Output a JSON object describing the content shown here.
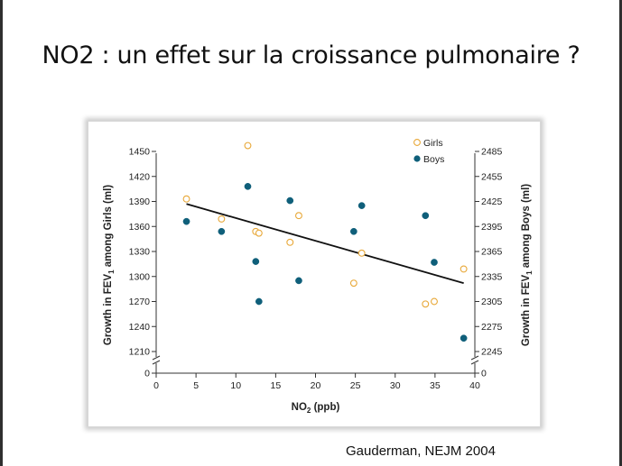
{
  "slide": {
    "title": "NO2 : un effet sur la croissance pulmonaire ?",
    "citation": "Gauderman, NEJM 2004"
  },
  "colors": {
    "girls": "#e8a838",
    "boys": "#0f5f7a",
    "regression": "#111111",
    "axis": "#333333"
  },
  "chart_data": {
    "type": "scatter",
    "title": "",
    "xlabel": "NO2 (ppb)",
    "xlabel_main": "NO",
    "xlabel_sub": "2",
    "xlabel_tail": " (ppb)",
    "ylabel_left": "Growth in FEV1 among Girls (ml)",
    "ylabel_left_main": "Growth in FEV",
    "ylabel_left_sub": "1",
    "ylabel_left_tail": " among Girls (ml)",
    "ylabel_right": "Growth in FEV1 among Boys (ml)",
    "ylabel_right_main": "Growth in FEV",
    "ylabel_right_sub": "1",
    "ylabel_right_tail": " among Boys (ml)",
    "xlim": [
      0,
      40
    ],
    "ylim_left": [
      1210,
      1450
    ],
    "ylim_right": [
      2245,
      2485
    ],
    "x_ticks": [
      "0",
      "5",
      "10",
      "15",
      "20",
      "25",
      "30",
      "35",
      "40"
    ],
    "y_left_ticks": [
      "1450",
      "1420",
      "1390",
      "1360",
      "1330",
      "1300",
      "1270",
      "1240",
      "1210"
    ],
    "y_right_ticks": [
      "2485",
      "2455",
      "2425",
      "2395",
      "2365",
      "2335",
      "2305",
      "2275",
      "2245"
    ],
    "axis_break_label": "0",
    "grid": false,
    "legend_position": "top-right",
    "series": [
      {
        "name": "Girls",
        "axis": "left",
        "marker": "open-circle",
        "points": [
          {
            "x": 3.8,
            "y": 1393
          },
          {
            "x": 8.2,
            "y": 1369
          },
          {
            "x": 11.5,
            "y": 1457
          },
          {
            "x": 12.5,
            "y": 1354
          },
          {
            "x": 12.9,
            "y": 1352
          },
          {
            "x": 16.8,
            "y": 1341
          },
          {
            "x": 17.9,
            "y": 1373
          },
          {
            "x": 24.8,
            "y": 1292
          },
          {
            "x": 25.8,
            "y": 1328
          },
          {
            "x": 33.8,
            "y": 1267
          },
          {
            "x": 34.9,
            "y": 1270
          },
          {
            "x": 38.6,
            "y": 1309
          }
        ]
      },
      {
        "name": "Boys",
        "axis": "right",
        "marker": "filled-circle",
        "points": [
          {
            "x": 3.8,
            "y": 2401
          },
          {
            "x": 8.2,
            "y": 2389
          },
          {
            "x": 11.5,
            "y": 2443
          },
          {
            "x": 12.5,
            "y": 2353
          },
          {
            "x": 12.9,
            "y": 2305
          },
          {
            "x": 16.8,
            "y": 2426
          },
          {
            "x": 17.9,
            "y": 2330
          },
          {
            "x": 24.8,
            "y": 2389
          },
          {
            "x": 25.8,
            "y": 2420
          },
          {
            "x": 33.8,
            "y": 2408
          },
          {
            "x": 34.9,
            "y": 2352
          },
          {
            "x": 38.6,
            "y": 2261
          }
        ]
      }
    ],
    "regression_line": {
      "axis": "left",
      "x": [
        3.8,
        38.6
      ],
      "y": [
        1387,
        1292
      ]
    }
  }
}
